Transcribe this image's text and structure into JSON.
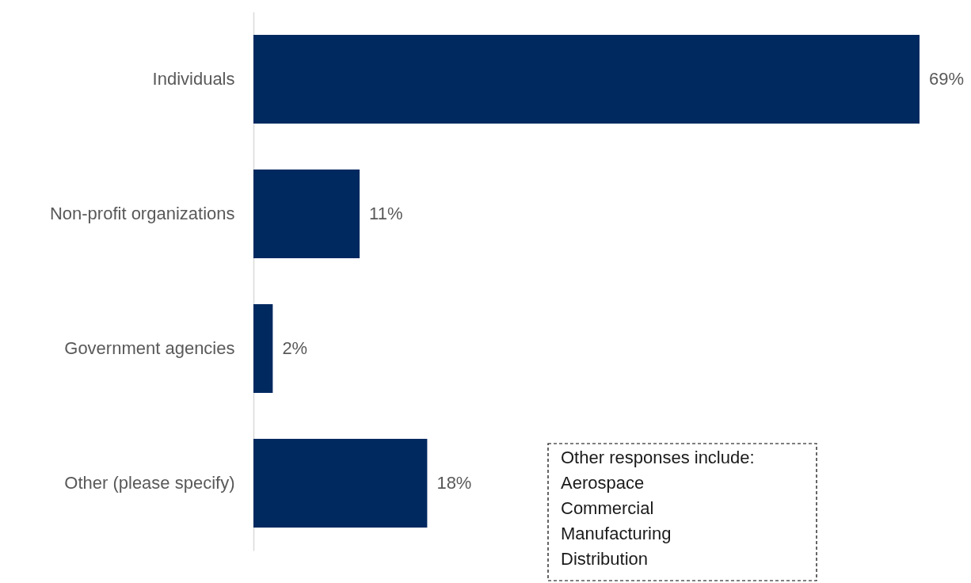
{
  "chart_data": {
    "type": "bar",
    "orientation": "horizontal",
    "categories": [
      "Individuals",
      "Non-profit organizations",
      "Government agencies",
      "Other (please specify)"
    ],
    "values": [
      69,
      11,
      2,
      18
    ],
    "value_labels": [
      "69%",
      "11%",
      "2%",
      "18%"
    ],
    "color": "#002960",
    "annotations": [
      "Other responses include:\nAerospace\nCommercial\nManufacturing\nDistribution"
    ]
  }
}
